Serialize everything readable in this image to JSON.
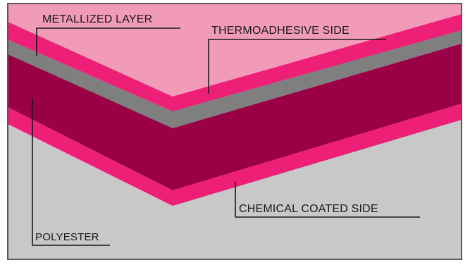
{
  "diagram": {
    "layers": [
      {
        "key": "metallized",
        "label": "METALLIZED LAYER",
        "color": "#7f7f7f"
      },
      {
        "key": "thermoadhesive",
        "label": "THERMOADHESIVE SIDE",
        "color": "#ee1f77"
      },
      {
        "key": "polyester",
        "label": "POLYESTER",
        "color": "#9a0046"
      },
      {
        "key": "chemical",
        "label": "CHEMICAL COATED SIDE",
        "color": "#ee1f77"
      }
    ],
    "colors": {
      "top_background": "#f19bb8",
      "bottom_background": "#c8c8c8",
      "frame": "#5a5a5a",
      "text": "#1a1a1a"
    }
  }
}
